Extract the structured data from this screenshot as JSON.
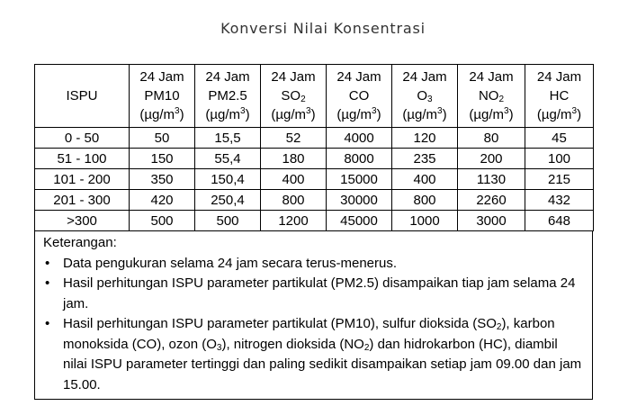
{
  "title": "Konversi Nilai Konsentrasi",
  "table": {
    "ispu_header": "ISPU",
    "columns": [
      {
        "line1": "24 Jam",
        "name": "PM10",
        "sub": "",
        "unit_pre": "(µg/m",
        "unit_sup": "3",
        "unit_post": ")"
      },
      {
        "line1": "24 Jam",
        "name": "PM2.5",
        "sub": "",
        "unit_pre": "(µg/m",
        "unit_sup": "3",
        "unit_post": ")"
      },
      {
        "line1": "24 Jam",
        "name": "SO",
        "sub": "2",
        "unit_pre": "(µg/m",
        "unit_sup": "3",
        "unit_post": ")"
      },
      {
        "line1": "24 Jam",
        "name": "CO",
        "sub": "",
        "unit_pre": "(µg/m",
        "unit_sup": "3",
        "unit_post": ")"
      },
      {
        "line1": "24 Jam",
        "name": "O",
        "sub": "3",
        "unit_pre": "(µg/m",
        "unit_sup": "3",
        "unit_post": ")"
      },
      {
        "line1": "24 Jam",
        "name": "NO",
        "sub": "2",
        "unit_pre": "(µg/m",
        "unit_sup": "3",
        "unit_post": ")"
      },
      {
        "line1": "24 Jam",
        "name": "HC",
        "sub": "",
        "unit_pre": "(µg/m",
        "unit_sup": "3",
        "unit_post": ")"
      }
    ],
    "rows": [
      {
        "ispu": "0 - 50",
        "values": [
          "50",
          "15,5",
          "52",
          "4000",
          "120",
          "80",
          "45"
        ]
      },
      {
        "ispu": "51 - 100",
        "values": [
          "150",
          "55,4",
          "180",
          "8000",
          "235",
          "200",
          "100"
        ]
      },
      {
        "ispu": "101 - 200",
        "values": [
          "350",
          "150,4",
          "400",
          "15000",
          "400",
          "1130",
          "215"
        ]
      },
      {
        "ispu": "201 - 300",
        "values": [
          "420",
          "250,4",
          "800",
          "30000",
          "800",
          "2260",
          "432"
        ]
      },
      {
        "ispu": ">300",
        "values": [
          "500",
          "500",
          "1200",
          "45000",
          "1000",
          "3000",
          "648"
        ]
      }
    ]
  },
  "notes": {
    "heading": "Keterangan:",
    "item1": "Data pengukuran selama 24 jam secara terus-menerus.",
    "item2": "Hasil perhitungan ISPU parameter partikulat (PM2.5) disampaikan tiap jam selama 24 jam.",
    "item3": {
      "t1": "Hasil perhitungan ISPU parameter partikulat (PM10), sulfur dioksida (SO",
      "s1": "2",
      "t2": "), karbon monoksida (CO), ozon (O",
      "s2": "3",
      "t3": "), nitrogen dioksida (NO",
      "s3": "2",
      "t4": ") dan hidrokarbon (HC), diambil nilai ISPU parameter tertinggi dan paling sedikit disampaikan setiap jam 09.00 dan jam 15.00."
    }
  }
}
